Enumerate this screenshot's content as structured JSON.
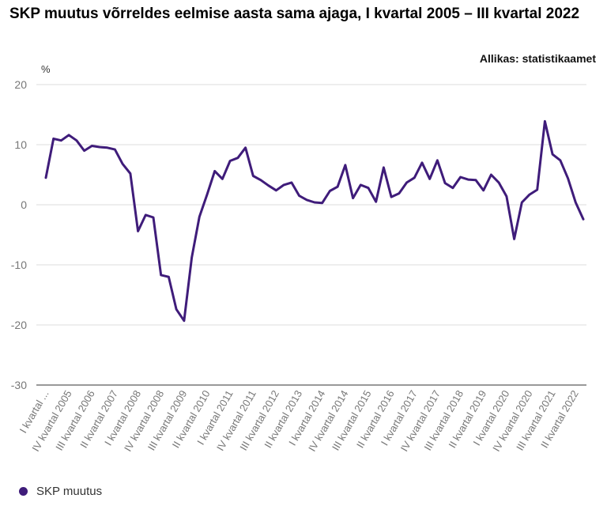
{
  "header": {
    "title": "SKP muutus võrreldes eelmise aasta sama ajaga, I kvartal 2005 – III kvartal 2022",
    "source": "Allikas: statistikaamet"
  },
  "colors": {
    "series": "#3f1c7a",
    "grid": "#dddddd",
    "axis": "#333333"
  },
  "chart_data": {
    "type": "line",
    "title": "SKP muutus võrreldes eelmise aasta sama ajaga, I kvartal 2005 – III kvartal 2022",
    "ylabel": "%",
    "ylim": [
      -30,
      20
    ],
    "yticks": [
      20,
      10,
      0,
      -10,
      -20,
      -30
    ],
    "grid": true,
    "legend_position": "bottom-left",
    "x_tick_labels": [
      {
        "index": 0,
        "label": "I kvartal ..."
      },
      {
        "index": 3,
        "label": "IV kvartal 2005"
      },
      {
        "index": 6,
        "label": "III kvartal 2006"
      },
      {
        "index": 9,
        "label": "II kvartal 2007"
      },
      {
        "index": 12,
        "label": "I kvartal 2008"
      },
      {
        "index": 15,
        "label": "IV kvartal 2008"
      },
      {
        "index": 18,
        "label": "III kvartal 2009"
      },
      {
        "index": 21,
        "label": "II kvartal 2010"
      },
      {
        "index": 24,
        "label": "I kvartal 2011"
      },
      {
        "index": 27,
        "label": "IV kvartal 2011"
      },
      {
        "index": 30,
        "label": "III kvartal 2012"
      },
      {
        "index": 33,
        "label": "II kvartal 2013"
      },
      {
        "index": 36,
        "label": "I kvartal 2014"
      },
      {
        "index": 39,
        "label": "IV kvartal 2014"
      },
      {
        "index": 42,
        "label": "III kvartal 2015"
      },
      {
        "index": 45,
        "label": "II kvartal 2016"
      },
      {
        "index": 48,
        "label": "I kvartal 2017"
      },
      {
        "index": 51,
        "label": "IV kvartal 2017"
      },
      {
        "index": 54,
        "label": "III kvartal 2018"
      },
      {
        "index": 57,
        "label": "II kvartal 2019"
      },
      {
        "index": 60,
        "label": "I kvartal 2020"
      },
      {
        "index": 63,
        "label": "IV kvartal 2020"
      },
      {
        "index": 66,
        "label": "III kvartal 2021"
      },
      {
        "index": 69,
        "label": "II kvartal 2022"
      }
    ],
    "series": [
      {
        "name": "SKP muutus",
        "values": [
          4.5,
          11.0,
          10.7,
          11.6,
          10.7,
          9.0,
          9.8,
          9.6,
          9.5,
          9.2,
          6.8,
          5.2,
          -4.4,
          -1.7,
          -2.1,
          -11.7,
          -12.0,
          -17.4,
          -19.3,
          -8.8,
          -2.0,
          1.7,
          5.6,
          4.3,
          7.3,
          7.8,
          9.5,
          4.8,
          4.1,
          3.2,
          2.4,
          3.3,
          3.7,
          1.5,
          0.8,
          0.4,
          0.3,
          2.3,
          3.0,
          6.6,
          1.1,
          3.3,
          2.8,
          0.5,
          6.2,
          1.3,
          1.9,
          3.7,
          4.5,
          7.0,
          4.3,
          7.4,
          3.6,
          2.8,
          4.6,
          4.2,
          4.1,
          2.4,
          5.0,
          3.7,
          1.4,
          -5.7,
          0.4,
          1.7,
          2.5,
          13.9,
          8.4,
          7.4,
          4.4,
          0.4,
          -2.4
        ]
      }
    ]
  }
}
